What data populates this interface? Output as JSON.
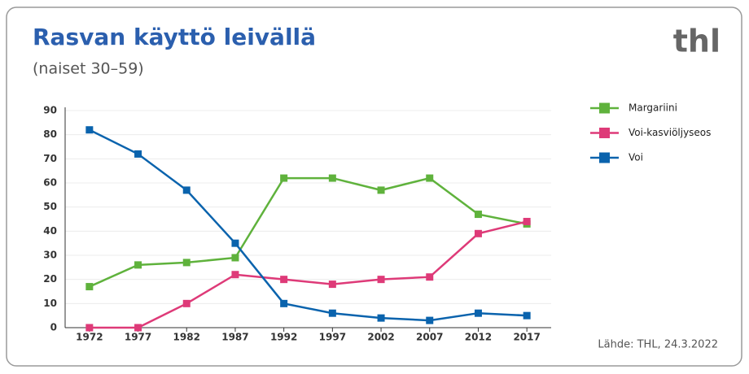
{
  "chart_data": {
    "type": "line",
    "title": "Rasvan käyttö leivällä",
    "subtitle": "(naiset 30–59)",
    "logo": "thl",
    "source": "Lähde: THL, 24.3.2022",
    "categories": [
      "1972",
      "1977",
      "1982",
      "1987",
      "1992",
      "1997",
      "2002",
      "2007",
      "2012",
      "2017"
    ],
    "series": [
      {
        "name": "Margariini",
        "color": "#5fb23c",
        "values": [
          17,
          26,
          27,
          29,
          62,
          62,
          57,
          62,
          47,
          43
        ]
      },
      {
        "name": "Voi-kasviöljyseos",
        "color": "#de3a78",
        "values": [
          0,
          0,
          10,
          22,
          20,
          18,
          20,
          21,
          39,
          44
        ]
      },
      {
        "name": "Voi",
        "color": "#0a63ad",
        "values": [
          82,
          72,
          57,
          35,
          10,
          6,
          4,
          3,
          6,
          5
        ]
      }
    ],
    "ylim": [
      0,
      90
    ],
    "yticks": [
      0,
      10,
      20,
      30,
      40,
      50,
      60,
      70,
      80,
      90
    ],
    "grid": true,
    "legend": "right"
  }
}
